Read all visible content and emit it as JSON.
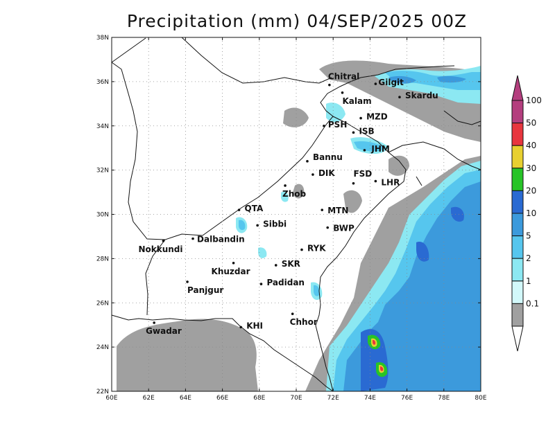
{
  "title": "Precipitation (mm) 04/SEP/2025 00Z",
  "map": {
    "lon_range": [
      60,
      80
    ],
    "lat_range": [
      22,
      38
    ],
    "x_ticks": [
      "60E",
      "62E",
      "64E",
      "66E",
      "68E",
      "70E",
      "72E",
      "74E",
      "76E",
      "78E",
      "80E"
    ],
    "y_ticks": [
      "22N",
      "24N",
      "26N",
      "28N",
      "30N",
      "32N",
      "34N",
      "36N",
      "38N"
    ],
    "grid": "dotted"
  },
  "cities": [
    {
      "name": "Chitral",
      "lon": 71.8,
      "lat": 35.85
    },
    {
      "name": "Gilgit",
      "lon": 74.3,
      "lat": 35.9
    },
    {
      "name": "Kalam",
      "lon": 72.5,
      "lat": 35.5
    },
    {
      "name": "Skardu",
      "lon": 75.6,
      "lat": 35.3
    },
    {
      "name": "MZD",
      "lon": 73.5,
      "lat": 34.35
    },
    {
      "name": "PSH",
      "lon": 71.5,
      "lat": 34.0
    },
    {
      "name": "ISB",
      "lon": 73.1,
      "lat": 33.7
    },
    {
      "name": "JHM",
      "lon": 73.7,
      "lat": 32.9
    },
    {
      "name": "Bannu",
      "lon": 70.6,
      "lat": 32.4
    },
    {
      "name": "DIK",
      "lon": 70.9,
      "lat": 31.8
    },
    {
      "name": "FSD",
      "lon": 73.1,
      "lat": 31.4
    },
    {
      "name": "LHR",
      "lon": 74.3,
      "lat": 31.5
    },
    {
      "name": "Zhob",
      "lon": 69.4,
      "lat": 31.3
    },
    {
      "name": "QTA",
      "lon": 66.9,
      "lat": 30.2
    },
    {
      "name": "MTN",
      "lon": 71.4,
      "lat": 30.2
    },
    {
      "name": "Sibbi",
      "lon": 67.9,
      "lat": 29.5
    },
    {
      "name": "BWP",
      "lon": 71.7,
      "lat": 29.4
    },
    {
      "name": "Dalbandin",
      "lon": 64.4,
      "lat": 28.9
    },
    {
      "name": "Nokkundi",
      "lon": 62.8,
      "lat": 28.8
    },
    {
      "name": "RYK",
      "lon": 70.3,
      "lat": 28.4
    },
    {
      "name": "Khuzdar",
      "lon": 66.6,
      "lat": 27.8
    },
    {
      "name": "SKR",
      "lon": 68.9,
      "lat": 27.7
    },
    {
      "name": "Panjgur",
      "lon": 64.1,
      "lat": 26.95
    },
    {
      "name": "Padidan",
      "lon": 68.1,
      "lat": 26.85
    },
    {
      "name": "Chhor",
      "lon": 69.8,
      "lat": 25.5
    },
    {
      "name": "KHI",
      "lon": 67.0,
      "lat": 24.9
    },
    {
      "name": "Gwadar",
      "lon": 62.3,
      "lat": 25.1
    }
  ],
  "colorbar": {
    "levels": [
      "0.1",
      "1",
      "2",
      "5",
      "10",
      "20",
      "30",
      "40",
      "50",
      "100"
    ],
    "colors": [
      "#a0a0a0",
      "#d2f8fa",
      "#8ce8f2",
      "#56c6ee",
      "#3c9adc",
      "#2a6ad2",
      "#27c427",
      "#e8d030",
      "#e8363e",
      "#b43e7e"
    ],
    "below_color": "#ffffff",
    "above_color": "#b43e7e"
  },
  "colors": {
    "trace": "#a0a0a0",
    "light": "#8ce8f2",
    "moderate": "#56c6ee",
    "heavy": "#3c9adc",
    "very_heavy": "#2a6ad2",
    "intense": "#27c427",
    "extreme": "#e8363e",
    "max": "#e8d030"
  }
}
